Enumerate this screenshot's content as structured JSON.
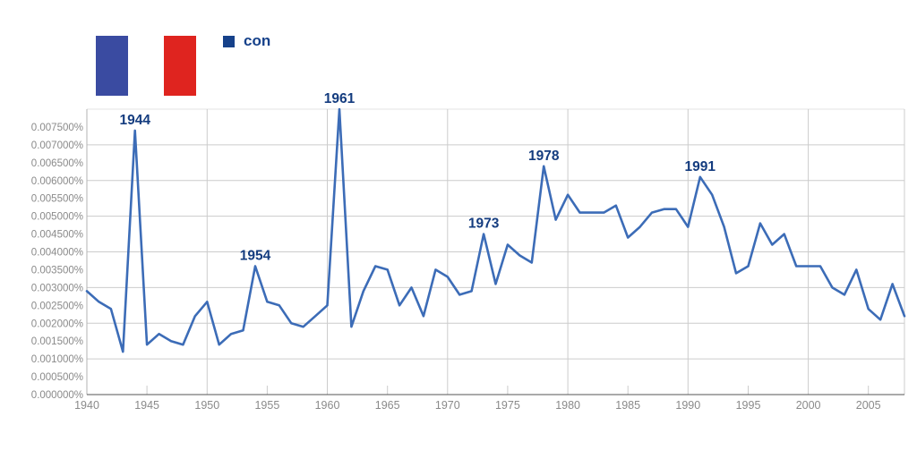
{
  "page": {
    "background": "#ffffff"
  },
  "flag": {
    "name": "france-flag",
    "colors": {
      "blue": "#3a4ba1",
      "white": "#ffffff",
      "red": "#df241f"
    }
  },
  "legend": {
    "label": "con",
    "color": "#16418a"
  },
  "chart_data": {
    "type": "line",
    "title": "",
    "xlabel": "",
    "ylabel": "",
    "xlim": [
      1940,
      2008
    ],
    "ylim": [
      0,
      0.008
    ],
    "grid": true,
    "x": [
      1940,
      1941,
      1942,
      1943,
      1944,
      1945,
      1946,
      1947,
      1948,
      1949,
      1950,
      1951,
      1952,
      1953,
      1954,
      1955,
      1956,
      1957,
      1958,
      1959,
      1960,
      1961,
      1962,
      1963,
      1964,
      1965,
      1966,
      1967,
      1968,
      1969,
      1970,
      1971,
      1972,
      1973,
      1974,
      1975,
      1976,
      1977,
      1978,
      1979,
      1980,
      1981,
      1982,
      1983,
      1984,
      1985,
      1986,
      1987,
      1988,
      1989,
      1990,
      1991,
      1992,
      1993,
      1994,
      1995,
      1996,
      1997,
      1998,
      1999,
      2000,
      2001,
      2002,
      2003,
      2004,
      2005,
      2006,
      2007,
      2008
    ],
    "series": [
      {
        "name": "con",
        "values": [
          0.0029,
          0.0026,
          0.0024,
          0.0012,
          0.0074,
          0.0014,
          0.0017,
          0.0015,
          0.0014,
          0.0022,
          0.0026,
          0.0014,
          0.0017,
          0.0018,
          0.0036,
          0.0026,
          0.0025,
          0.002,
          0.0019,
          0.0022,
          0.0025,
          0.008,
          0.0019,
          0.0029,
          0.0036,
          0.0035,
          0.0025,
          0.003,
          0.0022,
          0.0035,
          0.0033,
          0.0028,
          0.0029,
          0.0045,
          0.0031,
          0.0042,
          0.0039,
          0.0037,
          0.0064,
          0.0049,
          0.0056,
          0.0051,
          0.0051,
          0.0051,
          0.0053,
          0.0044,
          0.0047,
          0.0051,
          0.0052,
          0.0052,
          0.0047,
          0.0061,
          0.0056,
          0.0047,
          0.0034,
          0.0036,
          0.0048,
          0.0042,
          0.0045,
          0.0036,
          0.0036,
          0.0036,
          0.003,
          0.0028,
          0.0035,
          0.0024,
          0.0021,
          0.0031,
          0.0022
        ]
      }
    ],
    "x_ticks": [
      1940,
      1945,
      1950,
      1955,
      1960,
      1965,
      1970,
      1975,
      1980,
      1985,
      1990,
      1995,
      2000,
      2005
    ],
    "decade_gridlines": [
      1950,
      1960,
      1970,
      1980,
      1990,
      2000
    ],
    "y_tick_values": [
      0.0,
      0.0005,
      0.001,
      0.0015,
      0.002,
      0.0025,
      0.003,
      0.0035,
      0.004,
      0.0045,
      0.005,
      0.0055,
      0.006,
      0.0065,
      0.007,
      0.0075
    ],
    "y_tick_labels": [
      "0.000000%",
      "0.000500%",
      "0.001000%",
      "0.001500%",
      "0.002000%",
      "0.002500%",
      "0.003000%",
      "0.003500%",
      "0.004000%",
      "0.004500%",
      "0.005000%",
      "0.005500%",
      "0.006000%",
      "0.006500%",
      "0.007000%",
      "0.007500%"
    ],
    "y_gridline_values": [
      0.001,
      0.002,
      0.003,
      0.004,
      0.005,
      0.006,
      0.007
    ],
    "annotations": [
      {
        "x": 1944,
        "label": "1944"
      },
      {
        "x": 1954,
        "label": "1954"
      },
      {
        "x": 1961,
        "label": "1961"
      },
      {
        "x": 1973,
        "label": "1973"
      },
      {
        "x": 1978,
        "label": "1978"
      },
      {
        "x": 1991,
        "label": "1991"
      }
    ],
    "legend_position": "top",
    "line_color": "#3c6cb7",
    "annotation_color": "#143c7f",
    "axis_label_color": "#8a8a8a",
    "grid_color": "#cccccc",
    "axis_line_color": "#555555",
    "side_axis_color": "#b3b3b3",
    "top_border_color": "#e3e3e3"
  }
}
